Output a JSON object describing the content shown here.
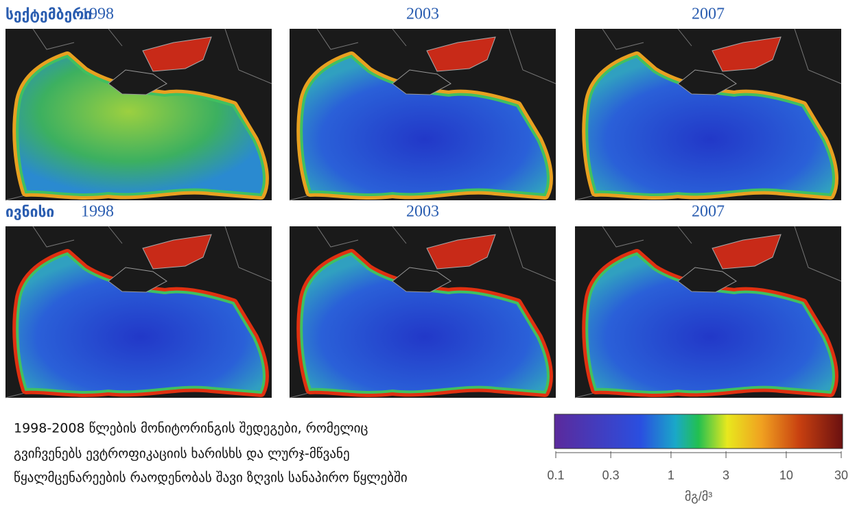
{
  "rows": [
    {
      "label": "სექტემბერი",
      "years": [
        "1998",
        "2003",
        "2007"
      ]
    },
    {
      "label": "ივნისი",
      "years": [
        "1998",
        "2003",
        "2007"
      ]
    }
  ],
  "caption": [
    "1998-2008 წლების მონიტორინგის შედეგები, რომელიც",
    "გვიჩვენებს ევტროფიკაციის ხარისხს და ლურჯ-მწვანე",
    "წყალმცენარეების რაოდენობას შავი ზღვის სანაპირო წყლებში"
  ],
  "colorbar": {
    "lim": [
      0.1,
      30
    ],
    "log": true,
    "ticks": [
      0.1,
      0.3,
      1,
      3,
      10,
      30
    ],
    "unit": "მგ/მ³"
  }
}
